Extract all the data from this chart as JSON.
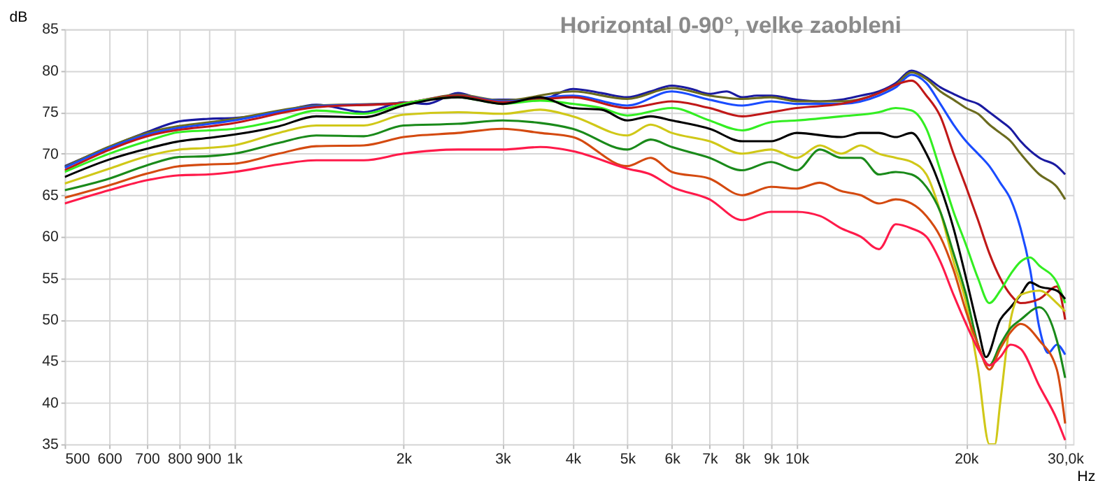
{
  "chart_data": {
    "type": "line",
    "title": "Horizontal 0-90°, velke zaobleni",
    "xlabel": "Hz",
    "ylabel": "dB",
    "log": "x",
    "grid": true,
    "legend": false,
    "marker": "none",
    "line_style": "solid",
    "xlim": [
      500,
      31000
    ],
    "ylim": [
      35,
      85
    ],
    "xticks": [
      500,
      600,
      700,
      800,
      900,
      {
        "value": 1000,
        "label": "1k"
      },
      {
        "value": 2000,
        "label": "2k"
      },
      {
        "value": 3000,
        "label": "3k"
      },
      {
        "value": 4000,
        "label": "4k"
      },
      {
        "value": 5000,
        "label": "5k"
      },
      {
        "value": 6000,
        "label": "6k"
      },
      {
        "value": 7000,
        "label": "7k"
      },
      {
        "value": 8000,
        "label": "8k"
      },
      {
        "value": 9000,
        "label": "9k"
      },
      {
        "value": 10000,
        "label": "10k"
      },
      {
        "value": 20000,
        "label": "20k"
      },
      {
        "value": 30000,
        "label": "30,0k"
      }
    ],
    "yticks": [
      35,
      40,
      45,
      50,
      55,
      60,
      65,
      70,
      75,
      80,
      85
    ],
    "series": [
      {
        "color": "#1a1aa0",
        "x": [
          500,
          600,
          700,
          800,
          900,
          1000,
          1200,
          1400,
          1700,
          2000,
          2200,
          2500,
          2800,
          3000,
          3500,
          4000,
          4500,
          5000,
          5500,
          6000,
          6500,
          7000,
          7500,
          8000,
          8500,
          9000,
          10000,
          11000,
          12000,
          13000,
          14000,
          15000,
          16000,
          17000,
          18000,
          19000,
          20000,
          21000,
          22000,
          23000,
          24000,
          25000,
          27000,
          29000,
          30000
        ],
        "values": [
          68.5,
          70.8,
          72.6,
          73.9,
          74.2,
          74.3,
          75,
          75.9,
          75,
          76.2,
          76,
          77.3,
          76.5,
          76.5,
          76.5,
          77.8,
          77.3,
          76.8,
          77.5,
          78.2,
          77.8,
          77.2,
          77.5,
          76.8,
          77,
          77,
          76.5,
          76.3,
          76.5,
          77,
          77.5,
          78.5,
          80,
          79.2,
          78,
          77.2,
          76.5,
          76,
          75,
          74,
          73,
          71.5,
          69.5,
          68.5,
          67.5
        ]
      },
      {
        "color": "#6b6b1e",
        "x": [
          500,
          700,
          1000,
          1400,
          2000,
          2500,
          3000,
          4000,
          5000,
          6000,
          7000,
          8000,
          9000,
          10000,
          12000,
          14000,
          15000,
          16000,
          17000,
          18000,
          19000,
          20000,
          21000,
          22000,
          23000,
          24000,
          25000,
          27000,
          29000,
          30000
        ],
        "values": [
          68.4,
          72.5,
          74.2,
          75.8,
          76.1,
          77.1,
          76.4,
          77.5,
          76.6,
          77.9,
          77,
          76.6,
          76.8,
          76.3,
          76.3,
          77.3,
          78.3,
          79.8,
          79,
          77.5,
          76.5,
          75.5,
          74.8,
          73.5,
          72.5,
          71.5,
          70,
          67.5,
          66,
          64.5
        ]
      },
      {
        "color": "#1a4cff",
        "x": [
          500,
          700,
          1000,
          1400,
          2000,
          2500,
          3000,
          4000,
          5000,
          6000,
          7000,
          8000,
          9000,
          10000,
          12000,
          14000,
          15000,
          16000,
          17000,
          18000,
          19000,
          20000,
          21000,
          22000,
          23000,
          24000,
          25000,
          26000,
          27000,
          28000,
          29000,
          30000
        ],
        "values": [
          68.3,
          72.3,
          74,
          75.7,
          76.1,
          77,
          76.3,
          77,
          75.8,
          77.5,
          76.5,
          75.8,
          76.3,
          76,
          76,
          77,
          78,
          79.5,
          78.5,
          76,
          73.5,
          71.5,
          70,
          68.5,
          66.5,
          64.5,
          61,
          56,
          49,
          46,
          47,
          45.8
        ]
      },
      {
        "color": "#c01818",
        "x": [
          500,
          700,
          1000,
          1400,
          2000,
          2500,
          3000,
          4000,
          5000,
          6000,
          7000,
          8000,
          9000,
          10000,
          12000,
          14000,
          15000,
          16000,
          17000,
          18000,
          19000,
          20000,
          21000,
          22000,
          23000,
          24000,
          25000,
          27000,
          29000,
          30000
        ],
        "values": [
          68,
          72.1,
          73.7,
          75.6,
          76.1,
          77,
          76.2,
          76.8,
          75.5,
          76.3,
          75.5,
          74.5,
          75,
          75.5,
          76,
          77.3,
          78.3,
          78.8,
          77,
          74.5,
          70,
          66,
          62,
          58,
          55,
          53,
          52,
          52.5,
          54,
          50
        ]
      },
      {
        "color": "#33ee22",
        "x": [
          500,
          600,
          700,
          800,
          900,
          1000,
          1200,
          1400,
          1700,
          2000,
          2500,
          3000,
          3500,
          4000,
          4500,
          5000,
          6000,
          7000,
          8000,
          9000,
          10000,
          12000,
          14000,
          15000,
          16000,
          17000,
          18000,
          19000,
          20000,
          21000,
          22000,
          23000,
          24000,
          25000,
          26000,
          27000,
          29000,
          30000
        ],
        "values": [
          67.8,
          70,
          71.5,
          72.6,
          72.8,
          73,
          74,
          75.2,
          74.8,
          76,
          76.8,
          76,
          76.4,
          76,
          75.5,
          74.6,
          75.5,
          74,
          72.8,
          73.8,
          74,
          74.5,
          75,
          75.5,
          75.2,
          73,
          68,
          63,
          59,
          55,
          52,
          53.5,
          55.5,
          57,
          57.5,
          56.5,
          54.5,
          52
        ]
      },
      {
        "color": "#000000",
        "x": [
          500,
          600,
          700,
          800,
          900,
          1000,
          1200,
          1400,
          1700,
          2000,
          2500,
          3000,
          3500,
          4000,
          4500,
          5000,
          5500,
          6000,
          7000,
          8000,
          9000,
          10000,
          12000,
          13000,
          14000,
          15000,
          16000,
          17000,
          18000,
          19000,
          20000,
          21000,
          21700,
          23000,
          24000,
          25000,
          26000,
          27000,
          29000,
          30000
        ],
        "values": [
          67.2,
          69.3,
          70.6,
          71.5,
          71.9,
          72.3,
          73.3,
          74.5,
          74.4,
          75.8,
          76.8,
          76,
          76.8,
          75.5,
          75.3,
          74,
          74.5,
          74,
          73,
          71.5,
          71.5,
          72.5,
          72,
          72.5,
          72.5,
          72,
          72.5,
          70,
          66,
          61,
          55,
          49,
          45.5,
          50,
          51.5,
          53,
          54.5,
          54,
          53.5,
          52.5
        ]
      },
      {
        "color": "#d0c818",
        "x": [
          500,
          600,
          700,
          800,
          900,
          1000,
          1200,
          1400,
          1700,
          2000,
          2500,
          3000,
          3500,
          4000,
          5000,
          5500,
          6000,
          7000,
          8000,
          9000,
          10000,
          11000,
          12000,
          13000,
          14000,
          15000,
          16000,
          17000,
          18000,
          19000,
          20000,
          21000,
          22000,
          22500,
          23000,
          24000,
          25000,
          27000,
          29000,
          30000
        ],
        "values": [
          66.4,
          68.2,
          69.7,
          70.5,
          70.7,
          71,
          72.5,
          73.4,
          73.4,
          74.7,
          75,
          74.8,
          75.3,
          74.5,
          72.2,
          73.5,
          72.5,
          71.5,
          70,
          70.5,
          69.5,
          71,
          70,
          71,
          70,
          69.5,
          69,
          67.5,
          63,
          57,
          52,
          44,
          35,
          35,
          40,
          50,
          53,
          53.5,
          52,
          51
        ]
      },
      {
        "color": "#1a8a1a",
        "x": [
          500,
          600,
          700,
          800,
          900,
          1000,
          1200,
          1400,
          1700,
          2000,
          2500,
          3000,
          3500,
          4000,
          5000,
          5500,
          6000,
          7000,
          8000,
          9000,
          10000,
          11000,
          12000,
          13000,
          14000,
          15000,
          16000,
          17000,
          18000,
          19000,
          20000,
          21000,
          22000,
          23000,
          24000,
          25000,
          27000,
          29000,
          30000
        ],
        "values": [
          65.6,
          67,
          68.6,
          69.6,
          69.7,
          70,
          71.3,
          72.2,
          72.1,
          73.4,
          73.6,
          74,
          73.7,
          73,
          70.5,
          71.7,
          70.8,
          69.5,
          68,
          69,
          68,
          70.5,
          69.5,
          69.5,
          67.5,
          67.8,
          67.5,
          66,
          63,
          58,
          53,
          47,
          44.5,
          47,
          49,
          50,
          51.5,
          47.5,
          43
        ]
      },
      {
        "color": "#d44a10",
        "x": [
          500,
          600,
          700,
          800,
          900,
          1000,
          1200,
          1400,
          1700,
          2000,
          2500,
          3000,
          3500,
          4000,
          5000,
          5500,
          6000,
          7000,
          8000,
          9000,
          10000,
          11000,
          12000,
          13000,
          14000,
          15000,
          16000,
          17000,
          18000,
          19000,
          20000,
          21000,
          22000,
          23000,
          24000,
          25000,
          27000,
          29000,
          30000
        ],
        "values": [
          64.7,
          66.2,
          67.6,
          68.5,
          68.7,
          68.8,
          70,
          70.9,
          71,
          72,
          72.5,
          73,
          72.5,
          72,
          68.5,
          69.5,
          67.8,
          67,
          65,
          66,
          65.8,
          66.5,
          65.5,
          65,
          64,
          64.5,
          64,
          62.5,
          60,
          56,
          51,
          47,
          44,
          46.5,
          48.5,
          49.5,
          47.5,
          44,
          37.5
        ]
      },
      {
        "color": "#ff1a4a",
        "x": [
          500,
          600,
          700,
          800,
          900,
          1000,
          1200,
          1400,
          1700,
          2000,
          2500,
          3000,
          3500,
          4000,
          5000,
          5500,
          6000,
          7000,
          8000,
          9000,
          10000,
          11000,
          12000,
          13000,
          14000,
          15000,
          16000,
          17000,
          18000,
          19000,
          20000,
          21000,
          22000,
          23000,
          24000,
          25000,
          27000,
          29000,
          30000
        ],
        "values": [
          64,
          65.6,
          66.8,
          67.4,
          67.5,
          67.8,
          68.7,
          69.2,
          69.2,
          70,
          70.5,
          70.5,
          70.8,
          70.3,
          68.2,
          67.5,
          66,
          64.5,
          62,
          63,
          63,
          62.5,
          61,
          60,
          58.5,
          61.5,
          61,
          60,
          57,
          53,
          49.5,
          46.5,
          44.5,
          45.5,
          47,
          46.5,
          42,
          38,
          35.5
        ]
      }
    ]
  }
}
